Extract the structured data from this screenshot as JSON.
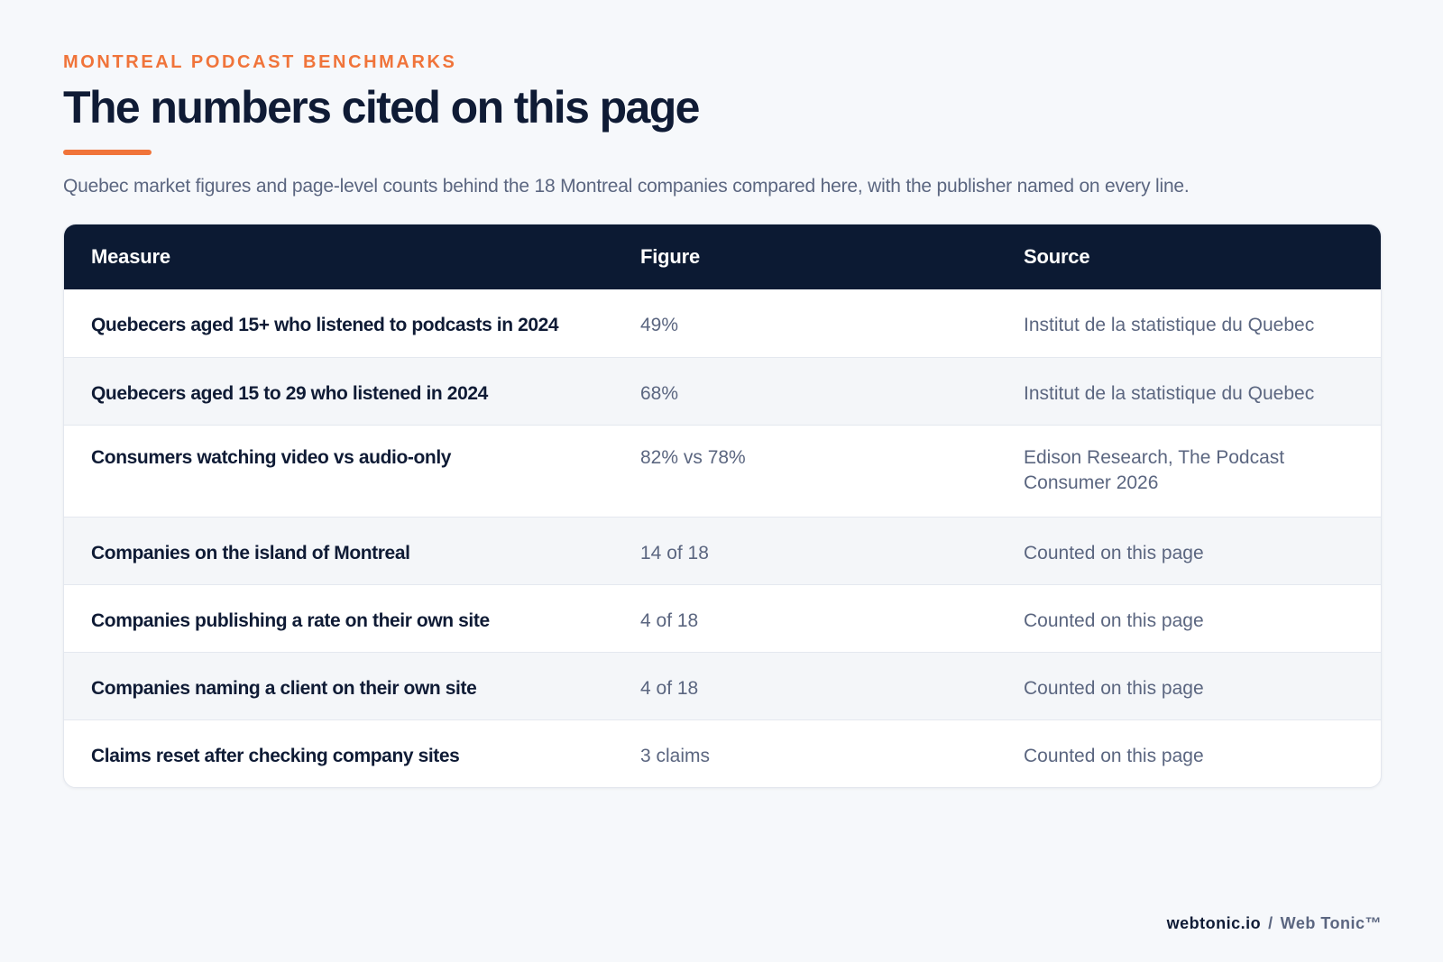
{
  "header": {
    "eyebrow": "MONTREAL PODCAST BENCHMARKS",
    "title": "The numbers cited on this page",
    "subtitle": "Quebec market figures and page-level counts behind the 18 Montreal companies compared here, with the publisher named on every line."
  },
  "table": {
    "columns": [
      "Measure",
      "Figure",
      "Source"
    ],
    "rows": [
      {
        "measure": "Quebecers aged 15+ who listened to podcasts in 2024",
        "figure": "49%",
        "source": "Institut de la statistique du Quebec"
      },
      {
        "measure": "Quebecers aged 15 to 29 who listened in 2024",
        "figure": "68%",
        "source": "Institut de la statistique du Quebec"
      },
      {
        "measure": "Consumers watching video vs audio-only",
        "figure": "82% vs 78%",
        "source": "Edison Research, The Podcast Consumer 2026"
      },
      {
        "measure": "Companies on the island of Montreal",
        "figure": "14 of 18",
        "source": "Counted on this page"
      },
      {
        "measure": "Companies publishing a rate on their own site",
        "figure": "4 of 18",
        "source": "Counted on this page"
      },
      {
        "measure": "Companies naming a client on their own site",
        "figure": "4 of 18",
        "source": "Counted on this page"
      },
      {
        "measure": "Claims reset after checking company sites",
        "figure": "3 claims",
        "source": "Counted on this page"
      }
    ]
  },
  "footer": {
    "domain": "webtonic.io",
    "separator": "/",
    "brand": "Web Tonic™"
  },
  "colors": {
    "accent": "#f0743a",
    "header_bg": "#0c1a33",
    "background": "#f6f8fb"
  }
}
